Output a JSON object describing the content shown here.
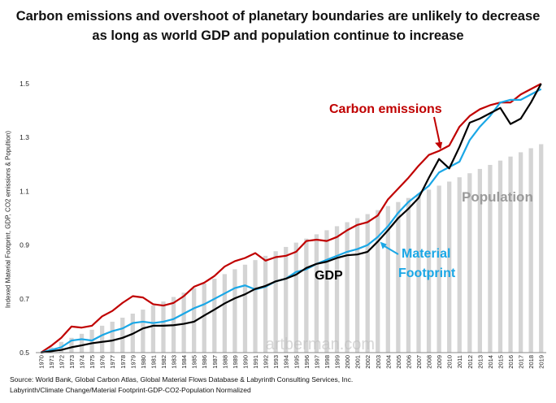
{
  "title": {
    "line1": "Carbon emissions and overshoot of planetary boundaries are unlikely to decrease",
    "line2": "as long as world GDP and population continue to increase"
  },
  "source": {
    "line1": "Source:  World Bank, Global Carbon Atlas, Global Material Flows Database & Labyrinth Consulting Services, Inc.",
    "line2": "Labyrinth/Climate Change/Material Footprint-GDP-CO2-Population Normalized"
  },
  "watermark": "artberman.com",
  "chart_data": {
    "type": "bar",
    "ylabel": "Indexed  Material Footprint, GDP, CO2 emissions & Popultion)",
    "ylim": [
      0.5,
      1.5
    ],
    "yticks": [
      "0.5",
      "0.7",
      "0.9",
      "1.1",
      "1.3",
      "1.5"
    ],
    "grid": false,
    "x": [
      1970,
      1971,
      1972,
      1973,
      1974,
      1975,
      1976,
      1977,
      1978,
      1979,
      1980,
      1981,
      1982,
      1983,
      1984,
      1985,
      1986,
      1987,
      1988,
      1989,
      1990,
      1991,
      1992,
      1993,
      1994,
      1995,
      1996,
      1997,
      1998,
      1999,
      2000,
      2001,
      2002,
      2003,
      2004,
      2005,
      2006,
      2007,
      2008,
      2009,
      2010,
      2011,
      2012,
      2013,
      2014,
      2015,
      2016,
      2017,
      2018,
      2019
    ],
    "series": [
      {
        "name": "Population",
        "kind": "bar",
        "color": "#d4d4d4",
        "values": [
          0.5,
          0.52,
          0.54,
          0.555,
          0.57,
          0.585,
          0.6,
          0.615,
          0.63,
          0.645,
          0.66,
          0.675,
          0.69,
          0.707,
          0.723,
          0.74,
          0.757,
          0.775,
          0.792,
          0.81,
          0.827,
          0.844,
          0.86,
          0.877,
          0.893,
          0.909,
          0.924,
          0.94,
          0.955,
          0.97,
          0.985,
          1.0,
          1.015,
          1.03,
          1.045,
          1.06,
          1.075,
          1.09,
          1.106,
          1.121,
          1.136,
          1.152,
          1.167,
          1.183,
          1.198,
          1.214,
          1.229,
          1.245,
          1.26,
          1.275
        ]
      },
      {
        "name": "Carbon emissions",
        "kind": "line",
        "color": "#c00000",
        "values": [
          0.5,
          0.525,
          0.555,
          0.597,
          0.593,
          0.6,
          0.635,
          0.655,
          0.685,
          0.71,
          0.705,
          0.68,
          0.675,
          0.685,
          0.71,
          0.745,
          0.76,
          0.785,
          0.82,
          0.84,
          0.852,
          0.87,
          0.842,
          0.855,
          0.86,
          0.875,
          0.915,
          0.92,
          0.915,
          0.93,
          0.955,
          0.975,
          0.985,
          1.01,
          1.07,
          1.11,
          1.15,
          1.195,
          1.235,
          1.25,
          1.27,
          1.34,
          1.38,
          1.405,
          1.42,
          1.43,
          1.43,
          1.46,
          1.48,
          1.5
        ]
      },
      {
        "name": "Material Footprint",
        "kind": "line",
        "color": "#1aa7e6",
        "values": [
          0.5,
          0.51,
          0.52,
          0.545,
          0.55,
          0.545,
          0.565,
          0.58,
          0.59,
          0.61,
          0.615,
          0.61,
          0.615,
          0.625,
          0.645,
          0.665,
          0.68,
          0.7,
          0.72,
          0.74,
          0.75,
          0.735,
          0.745,
          0.765,
          0.775,
          0.8,
          0.81,
          0.83,
          0.845,
          0.86,
          0.875,
          0.885,
          0.9,
          0.93,
          0.97,
          1.02,
          1.06,
          1.09,
          1.12,
          1.17,
          1.19,
          1.21,
          1.29,
          1.34,
          1.38,
          1.43,
          1.44,
          1.44,
          1.46,
          1.48
        ]
      },
      {
        "name": "GDP",
        "kind": "line",
        "color": "#000000",
        "values": [
          0.5,
          0.505,
          0.51,
          0.52,
          0.527,
          0.535,
          0.54,
          0.545,
          0.555,
          0.57,
          0.59,
          0.6,
          0.6,
          0.602,
          0.607,
          0.615,
          0.638,
          0.66,
          0.683,
          0.702,
          0.717,
          0.737,
          0.748,
          0.765,
          0.775,
          0.79,
          0.815,
          0.83,
          0.838,
          0.852,
          0.862,
          0.865,
          0.875,
          0.913,
          0.955,
          1.0,
          1.035,
          1.075,
          1.15,
          1.22,
          1.185,
          1.265,
          1.355,
          1.37,
          1.39,
          1.41,
          1.35,
          1.37,
          1.43,
          1.5
        ]
      }
    ],
    "annotations": [
      {
        "text": "Carbon emissions",
        "color": "#c00000",
        "arrow_to_x": 2009
      },
      {
        "text": "Population",
        "color": "#9a9a9a"
      },
      {
        "text": "GDP",
        "color": "#000000"
      },
      {
        "text": "Material",
        "color": "#1aa7e6",
        "arrow_to_x": 2003
      },
      {
        "text": "Footprint",
        "color": "#1aa7e6"
      }
    ]
  }
}
